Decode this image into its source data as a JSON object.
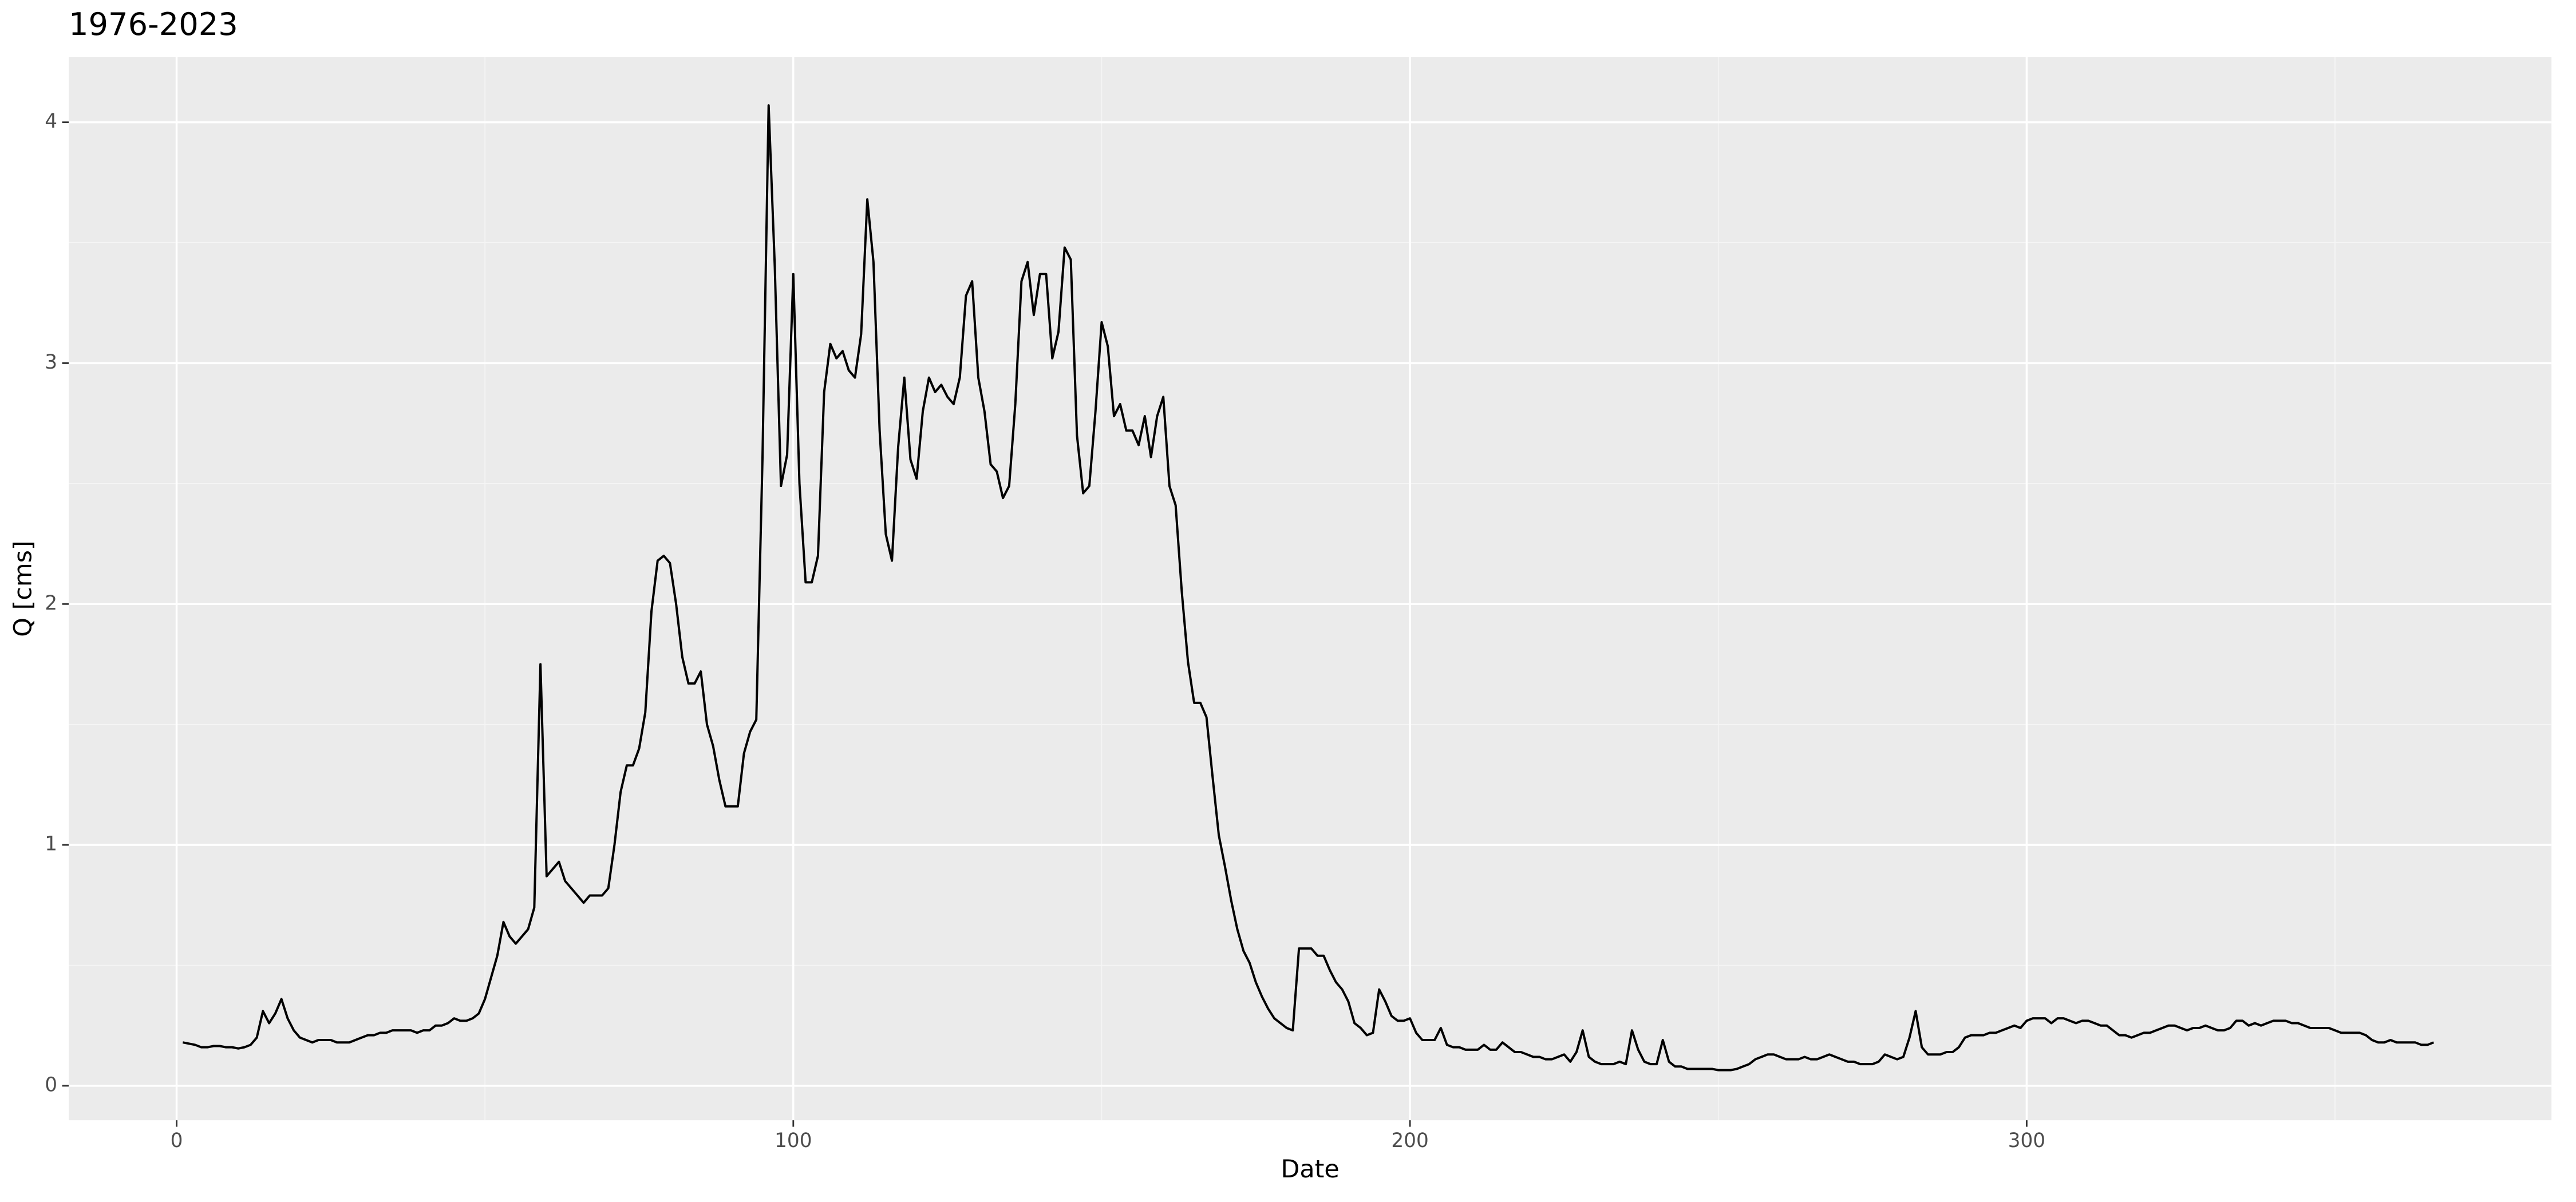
{
  "chart_data": {
    "type": "line",
    "title": "1976-2023",
    "xlabel": "Date",
    "ylabel": "Q [cms]",
    "xlim": [
      -17.5,
      385.1
    ],
    "ylim": [
      -0.143,
      4.27
    ],
    "xticks": [
      0,
      100,
      200,
      300
    ],
    "yticks": [
      0,
      1,
      2,
      3,
      4
    ],
    "grid": true,
    "x": [
      1,
      2,
      3,
      4,
      5,
      6,
      7,
      8,
      9,
      10,
      11,
      12,
      13,
      14,
      15,
      16,
      17,
      18,
      19,
      20,
      21,
      22,
      23,
      24,
      25,
      26,
      27,
      28,
      29,
      30,
      31,
      32,
      33,
      34,
      35,
      36,
      37,
      38,
      39,
      40,
      41,
      42,
      43,
      44,
      45,
      46,
      47,
      48,
      49,
      50,
      51,
      52,
      53,
      54,
      55,
      56,
      57,
      58,
      59,
      60,
      61,
      62,
      63,
      64,
      65,
      66,
      67,
      68,
      69,
      70,
      71,
      72,
      73,
      74,
      75,
      76,
      77,
      78,
      79,
      80,
      81,
      82,
      83,
      84,
      85,
      86,
      87,
      88,
      89,
      90,
      91,
      92,
      93,
      94,
      95,
      96,
      97,
      98,
      99,
      100,
      101,
      102,
      103,
      104,
      105,
      106,
      107,
      108,
      109,
      110,
      111,
      112,
      113,
      114,
      115,
      116,
      117,
      118,
      119,
      120,
      121,
      122,
      123,
      124,
      125,
      126,
      127,
      128,
      129,
      130,
      131,
      132,
      133,
      134,
      135,
      136,
      137,
      138,
      139,
      140,
      141,
      142,
      143,
      144,
      145,
      146,
      147,
      148,
      149,
      150,
      151,
      152,
      153,
      154,
      155,
      156,
      157,
      158,
      159,
      160,
      161,
      162,
      163,
      164,
      165,
      166,
      167,
      168,
      169,
      170,
      171,
      172,
      173,
      174,
      175,
      176,
      177,
      178,
      179,
      180,
      181,
      182,
      183,
      184,
      185,
      186,
      187,
      188,
      189,
      190,
      191,
      192,
      193,
      194,
      195,
      196,
      197,
      198,
      199,
      200,
      201,
      202,
      203,
      204,
      205,
      206,
      207,
      208,
      209,
      210,
      211,
      212,
      213,
      214,
      215,
      216,
      217,
      218,
      219,
      220,
      221,
      222,
      223,
      224,
      225,
      226,
      227,
      228,
      229,
      230,
      231,
      232,
      233,
      234,
      235,
      236,
      237,
      238,
      239,
      240,
      241,
      242,
      243,
      244,
      245,
      246,
      247,
      248,
      249,
      250,
      251,
      252,
      253,
      254,
      255,
      256,
      257,
      258,
      259,
      260,
      261,
      262,
      263,
      264,
      265,
      266,
      267,
      268,
      269,
      270,
      271,
      272,
      273,
      274,
      275,
      276,
      277,
      278,
      279,
      280,
      281,
      282,
      283,
      284,
      285,
      286,
      287,
      288,
      289,
      290,
      291,
      292,
      293,
      294,
      295,
      296,
      297,
      298,
      299,
      300,
      301,
      302,
      303,
      304,
      305,
      306,
      307,
      308,
      309,
      310,
      311,
      312,
      313,
      314,
      315,
      316,
      317,
      318,
      319,
      320,
      321,
      322,
      323,
      324,
      325,
      326,
      327,
      328,
      329,
      330,
      331,
      332,
      333,
      334,
      335,
      336,
      337,
      338,
      339,
      340,
      341,
      342,
      343,
      344,
      345,
      346,
      347,
      348,
      349,
      350,
      351,
      352,
      353,
      354,
      355,
      356,
      357,
      358,
      359,
      360,
      361,
      362,
      363,
      364,
      365,
      366
    ],
    "series": [
      {
        "color": "#000000",
        "values": [
          0.18,
          0.175,
          0.17,
          0.16,
          0.16,
          0.165,
          0.165,
          0.16,
          0.16,
          0.155,
          0.16,
          0.17,
          0.2,
          0.31,
          0.26,
          0.3,
          0.36,
          0.28,
          0.23,
          0.2,
          0.19,
          0.18,
          0.19,
          0.19,
          0.19,
          0.18,
          0.18,
          0.18,
          0.19,
          0.2,
          0.21,
          0.21,
          0.22,
          0.22,
          0.23,
          0.23,
          0.23,
          0.23,
          0.22,
          0.23,
          0.23,
          0.25,
          0.25,
          0.26,
          0.28,
          0.27,
          0.27,
          0.28,
          0.3,
          0.36,
          0.45,
          0.54,
          0.68,
          0.62,
          0.59,
          0.62,
          0.65,
          0.74,
          1.75,
          0.87,
          0.9,
          0.93,
          0.85,
          0.82,
          0.79,
          0.76,
          0.79,
          0.79,
          0.79,
          0.82,
          1.0,
          1.22,
          1.33,
          1.33,
          1.4,
          1.55,
          1.97,
          2.18,
          2.2,
          2.17,
          2.0,
          1.78,
          1.67,
          1.67,
          1.72,
          1.5,
          1.41,
          1.27,
          1.16,
          1.16,
          1.16,
          1.38,
          1.47,
          1.52,
          2.6,
          4.07,
          3.4,
          2.49,
          2.62,
          3.37,
          2.5,
          2.09,
          2.09,
          2.2,
          2.88,
          3.08,
          3.02,
          3.05,
          2.97,
          2.94,
          3.12,
          3.68,
          3.42,
          2.72,
          2.29,
          2.18,
          2.65,
          2.94,
          2.6,
          2.52,
          2.8,
          2.94,
          2.88,
          2.91,
          2.86,
          2.83,
          2.94,
          3.28,
          3.34,
          2.94,
          2.8,
          2.58,
          2.55,
          2.44,
          2.49,
          2.83,
          3.34,
          3.42,
          3.2,
          3.37,
          3.37,
          3.02,
          3.13,
          3.48,
          3.43,
          2.7,
          2.46,
          2.49,
          2.8,
          3.17,
          3.07,
          2.78,
          2.83,
          2.72,
          2.72,
          2.66,
          2.78,
          2.61,
          2.78,
          2.86,
          2.49,
          2.41,
          2.05,
          1.76,
          1.59,
          1.59,
          1.53,
          1.28,
          1.04,
          0.91,
          0.77,
          0.65,
          0.56,
          0.51,
          0.43,
          0.37,
          0.32,
          0.28,
          0.26,
          0.24,
          0.23,
          0.57,
          0.57,
          0.57,
          0.54,
          0.54,
          0.48,
          0.43,
          0.4,
          0.35,
          0.26,
          0.24,
          0.21,
          0.22,
          0.4,
          0.35,
          0.29,
          0.27,
          0.27,
          0.28,
          0.22,
          0.19,
          0.19,
          0.19,
          0.24,
          0.17,
          0.16,
          0.16,
          0.15,
          0.15,
          0.15,
          0.17,
          0.15,
          0.15,
          0.18,
          0.16,
          0.14,
          0.14,
          0.13,
          0.12,
          0.12,
          0.11,
          0.11,
          0.12,
          0.13,
          0.1,
          0.14,
          0.23,
          0.12,
          0.1,
          0.09,
          0.09,
          0.09,
          0.1,
          0.09,
          0.23,
          0.15,
          0.1,
          0.09,
          0.09,
          0.19,
          0.1,
          0.08,
          0.08,
          0.07,
          0.07,
          0.07,
          0.07,
          0.07,
          0.065,
          0.065,
          0.065,
          0.07,
          0.08,
          0.09,
          0.11,
          0.12,
          0.13,
          0.13,
          0.12,
          0.11,
          0.11,
          0.11,
          0.12,
          0.11,
          0.11,
          0.12,
          0.13,
          0.12,
          0.11,
          0.1,
          0.1,
          0.09,
          0.09,
          0.09,
          0.1,
          0.13,
          0.12,
          0.11,
          0.12,
          0.2,
          0.31,
          0.16,
          0.13,
          0.13,
          0.13,
          0.14,
          0.14,
          0.16,
          0.2,
          0.21,
          0.21,
          0.21,
          0.22,
          0.22,
          0.23,
          0.24,
          0.25,
          0.24,
          0.27,
          0.28,
          0.28,
          0.28,
          0.26,
          0.28,
          0.28,
          0.27,
          0.26,
          0.27,
          0.27,
          0.26,
          0.25,
          0.25,
          0.23,
          0.21,
          0.21,
          0.2,
          0.21,
          0.22,
          0.22,
          0.23,
          0.24,
          0.25,
          0.25,
          0.24,
          0.23,
          0.24,
          0.24,
          0.25,
          0.24,
          0.23,
          0.23,
          0.24,
          0.27,
          0.27,
          0.25,
          0.26,
          0.25,
          0.26,
          0.27,
          0.27,
          0.27,
          0.26,
          0.26,
          0.25,
          0.24,
          0.24,
          0.24,
          0.24,
          0.23,
          0.22,
          0.22,
          0.22,
          0.22,
          0.21,
          0.19,
          0.18,
          0.18,
          0.19,
          0.18,
          0.18,
          0.18,
          0.18,
          0.17,
          0.17,
          0.18
        ]
      }
    ]
  }
}
